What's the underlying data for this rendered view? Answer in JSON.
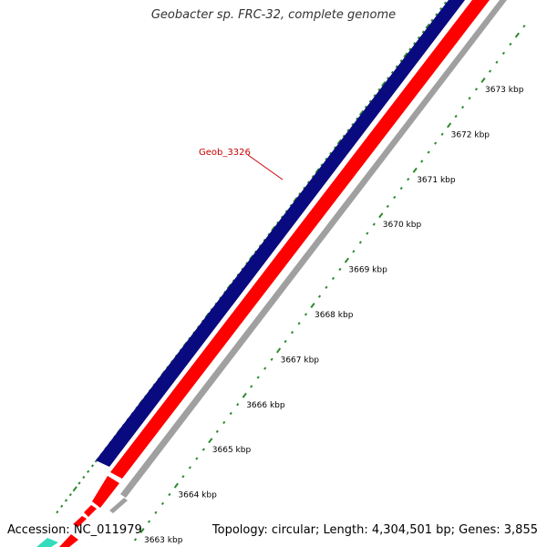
{
  "title": "Geobacter sp. FRC-32, complete genome",
  "footer": {
    "accession": "Accession: NC_011979",
    "summary": "Topology: circular; Length: 4,304,501 bp; Genes: 3,855"
  },
  "gene_label": {
    "text": "Geob_3326",
    "color": "#cc0000"
  },
  "ticks": [
    {
      "label": "3663 kbp"
    },
    {
      "label": "3664 kbp"
    },
    {
      "label": "3665 kbp"
    },
    {
      "label": "3666 kbp"
    },
    {
      "label": "3667 kbp"
    },
    {
      "label": "3668 kbp"
    },
    {
      "label": "3669 kbp"
    },
    {
      "label": "3670 kbp"
    },
    {
      "label": "3671 kbp"
    },
    {
      "label": "3672 kbp"
    },
    {
      "label": "3673 kbp"
    }
  ],
  "colors": {
    "forward_gene": "#0a0a80",
    "reverse_gene": "#ff0000",
    "backbone": "#999999",
    "tick": "#2d8a2d",
    "rna": "#33ddbb"
  }
}
